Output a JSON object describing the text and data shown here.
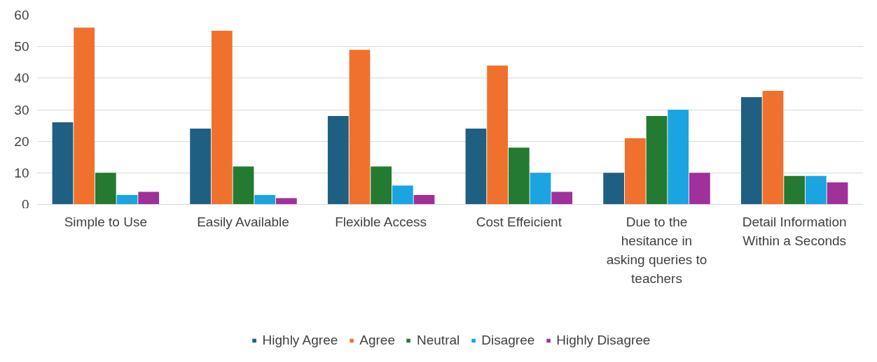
{
  "chart_data": {
    "type": "bar",
    "categories": [
      "Simple to Use",
      "Easily Available",
      "Flexible Access",
      "Cost Effeicient",
      "Due to the hesitance in asking queries to teachers",
      "Detail Information Within a Seconds"
    ],
    "series": [
      {
        "name": "Highly Agree",
        "color": "#1f5f82",
        "values": [
          26,
          24,
          28,
          24,
          10,
          34
        ]
      },
      {
        "name": "Agree",
        "color": "#f0712e",
        "values": [
          56,
          55,
          49,
          44,
          21,
          36
        ]
      },
      {
        "name": "Neutral",
        "color": "#237a30",
        "values": [
          10,
          12,
          12,
          18,
          28,
          9
        ]
      },
      {
        "name": "Disagree",
        "color": "#1aa5e0",
        "values": [
          3,
          3,
          6,
          10,
          30,
          9
        ]
      },
      {
        "name": "Highly Disagree",
        "color": "#a0309a",
        "values": [
          4,
          2,
          3,
          4,
          10,
          7
        ]
      }
    ],
    "ylim": [
      0,
      60
    ],
    "yticks": [
      0,
      10,
      20,
      30,
      40,
      50,
      60
    ],
    "grid": "y",
    "legend": "bottom"
  }
}
